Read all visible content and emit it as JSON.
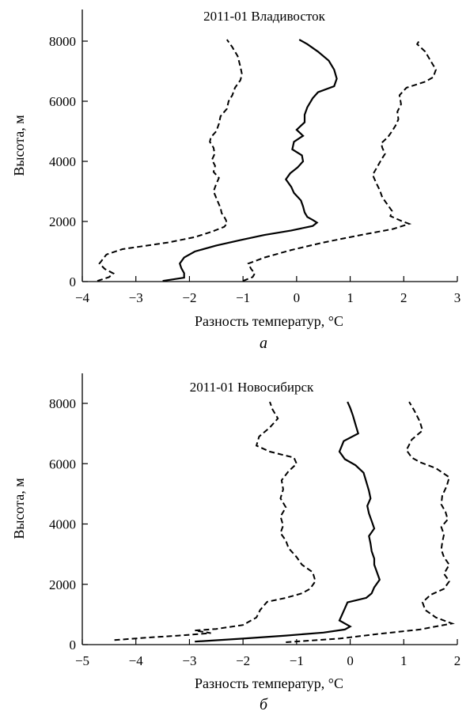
{
  "chart_data": [
    {
      "type": "line",
      "panel_label": "а",
      "title": "2011-01 Владивосток",
      "xlabel": "Разность температур, °C",
      "ylabel": "Высота, м",
      "xlim": [
        -4,
        3
      ],
      "ylim": [
        0,
        8500
      ],
      "xticks": [
        "−4",
        "−3",
        "−2",
        "−1",
        "0",
        "1",
        "2",
        "3"
      ],
      "yticks": [
        "0",
        "2000",
        "4000",
        "6000",
        "8000"
      ],
      "xtick_values": [
        -4,
        -3,
        -2,
        -1,
        0,
        1,
        2,
        3
      ],
      "ytick_values": [
        0,
        2000,
        4000,
        6000,
        8000
      ],
      "grid": false,
      "series": [
        {
          "style": "dashed",
          "points": [
            [
              -3.72,
              20
            ],
            [
              -3.5,
              150
            ],
            [
              -3.42,
              270
            ],
            [
              -3.58,
              420
            ],
            [
              -3.68,
              600
            ],
            [
              -3.55,
              900
            ],
            [
              -3.25,
              1080
            ],
            [
              -2.4,
              1300
            ],
            [
              -1.9,
              1480
            ],
            [
              -1.6,
              1650
            ],
            [
              -1.35,
              1820
            ],
            [
              -1.3,
              1930
            ],
            [
              -1.32,
              2050
            ],
            [
              -1.35,
              2150
            ],
            [
              -1.4,
              2280
            ],
            [
              -1.42,
              2450
            ],
            [
              -1.48,
              2700
            ],
            [
              -1.55,
              3000
            ],
            [
              -1.5,
              3250
            ],
            [
              -1.45,
              3450
            ],
            [
              -1.55,
              3650
            ],
            [
              -1.52,
              3850
            ],
            [
              -1.58,
              4050
            ],
            [
              -1.53,
              4250
            ],
            [
              -1.55,
              4450
            ],
            [
              -1.62,
              4650
            ],
            [
              -1.6,
              4800
            ],
            [
              -1.5,
              5000
            ],
            [
              -1.45,
              5250
            ],
            [
              -1.42,
              5500
            ],
            [
              -1.3,
              5750
            ],
            [
              -1.27,
              6000
            ],
            [
              -1.2,
              6200
            ],
            [
              -1.15,
              6450
            ],
            [
              -1.05,
              6700
            ],
            [
              -1.02,
              6900
            ],
            [
              -1.05,
              7150
            ],
            [
              -1.1,
              7500
            ],
            [
              -1.2,
              7800
            ],
            [
              -1.3,
              8050
            ]
          ]
        },
        {
          "style": "solid",
          "points": [
            [
              -2.5,
              20
            ],
            [
              -2.1,
              130
            ],
            [
              -2.1,
              280
            ],
            [
              -2.15,
              440
            ],
            [
              -2.18,
              600
            ],
            [
              -2.1,
              800
            ],
            [
              -1.9,
              1000
            ],
            [
              -1.5,
              1200
            ],
            [
              -1.05,
              1380
            ],
            [
              -0.6,
              1550
            ],
            [
              -0.1,
              1700
            ],
            [
              0.3,
              1850
            ],
            [
              0.38,
              1960
            ],
            [
              0.3,
              2050
            ],
            [
              0.2,
              2150
            ],
            [
              0.15,
              2300
            ],
            [
              0.12,
              2500
            ],
            [
              0.08,
              2700
            ],
            [
              -0.05,
              2950
            ],
            [
              -0.1,
              3150
            ],
            [
              -0.2,
              3400
            ],
            [
              -0.12,
              3600
            ],
            [
              0.02,
              3800
            ],
            [
              0.12,
              4000
            ],
            [
              0.1,
              4200
            ],
            [
              -0.08,
              4400
            ],
            [
              -0.05,
              4650
            ],
            [
              0.12,
              4850
            ],
            [
              0.0,
              5050
            ],
            [
              0.15,
              5300
            ],
            [
              0.15,
              5550
            ],
            [
              0.2,
              5800
            ],
            [
              0.3,
              6100
            ],
            [
              0.4,
              6300
            ],
            [
              0.7,
              6500
            ],
            [
              0.75,
              6750
            ],
            [
              0.7,
              7050
            ],
            [
              0.6,
              7350
            ],
            [
              0.4,
              7650
            ],
            [
              0.2,
              7900
            ],
            [
              0.05,
              8050
            ]
          ]
        },
        {
          "style": "dashed",
          "points": [
            [
              -1.0,
              20
            ],
            [
              -0.82,
              150
            ],
            [
              -0.78,
              270
            ],
            [
              -0.85,
              420
            ],
            [
              -0.9,
              600
            ],
            [
              -0.6,
              800
            ],
            [
              -0.1,
              1050
            ],
            [
              0.5,
              1300
            ],
            [
              1.2,
              1550
            ],
            [
              1.8,
              1750
            ],
            [
              2.1,
              1920
            ],
            [
              1.95,
              2020
            ],
            [
              1.75,
              2180
            ],
            [
              1.78,
              2350
            ],
            [
              1.7,
              2550
            ],
            [
              1.6,
              2800
            ],
            [
              1.55,
              3050
            ],
            [
              1.48,
              3300
            ],
            [
              1.42,
              3550
            ],
            [
              1.5,
              3800
            ],
            [
              1.58,
              4050
            ],
            [
              1.65,
              4250
            ],
            [
              1.6,
              4450
            ],
            [
              1.58,
              4600
            ],
            [
              1.7,
              4800
            ],
            [
              1.78,
              5000
            ],
            [
              1.85,
              5200
            ],
            [
              1.9,
              5400
            ],
            [
              1.88,
              5650
            ],
            [
              1.95,
              5900
            ],
            [
              1.92,
              6200
            ],
            [
              2.05,
              6450
            ],
            [
              2.4,
              6650
            ],
            [
              2.55,
              6800
            ],
            [
              2.6,
              7050
            ],
            [
              2.5,
              7350
            ],
            [
              2.4,
              7650
            ],
            [
              2.25,
              7900
            ],
            [
              2.3,
              8050
            ]
          ]
        }
      ]
    },
    {
      "type": "line",
      "panel_label": "б",
      "title": "2011-01 Новосибирск",
      "xlabel": "Разность температур, °C",
      "ylabel": "Высота, м",
      "xlim": [
        -5,
        2
      ],
      "ylim": [
        0,
        9000
      ],
      "xticks": [
        "−5",
        "−4",
        "−3",
        "−2",
        "−1",
        "0",
        "1",
        "2"
      ],
      "yticks": [
        "0",
        "2000",
        "4000",
        "6000",
        "8000"
      ],
      "xtick_values": [
        -5,
        -4,
        -3,
        -2,
        -1,
        0,
        1,
        2
      ],
      "ytick_values": [
        0,
        2000,
        4000,
        6000,
        8000
      ],
      "grid": false,
      "series": [
        {
          "style": "dashed",
          "points": [
            [
              -4.4,
              150
            ],
            [
              -3.8,
              230
            ],
            [
              -3.2,
              300
            ],
            [
              -2.6,
              380
            ],
            [
              -2.9,
              470
            ],
            [
              -2.5,
              520
            ],
            [
              -2.0,
              650
            ],
            [
              -1.75,
              900
            ],
            [
              -1.68,
              1150
            ],
            [
              -1.55,
              1420
            ],
            [
              -1.2,
              1550
            ],
            [
              -0.9,
              1700
            ],
            [
              -0.75,
              1850
            ],
            [
              -0.65,
              2100
            ],
            [
              -0.7,
              2400
            ],
            [
              -0.9,
              2650
            ],
            [
              -1.0,
              2900
            ],
            [
              -1.15,
              3200
            ],
            [
              -1.2,
              3450
            ],
            [
              -1.3,
              3700
            ],
            [
              -1.25,
              3950
            ],
            [
              -1.3,
              4250
            ],
            [
              -1.2,
              4550
            ],
            [
              -1.3,
              4850
            ],
            [
              -1.25,
              5150
            ],
            [
              -1.28,
              5450
            ],
            [
              -1.15,
              5750
            ],
            [
              -1.0,
              6000
            ],
            [
              -1.05,
              6200
            ],
            [
              -1.5,
              6400
            ],
            [
              -1.75,
              6600
            ],
            [
              -1.7,
              6900
            ],
            [
              -1.5,
              7200
            ],
            [
              -1.35,
              7500
            ],
            [
              -1.45,
              7800
            ],
            [
              -1.5,
              8050
            ]
          ]
        },
        {
          "style": "solid",
          "points": [
            [
              -2.9,
              100
            ],
            [
              -2.0,
              200
            ],
            [
              -1.2,
              300
            ],
            [
              -0.5,
              400
            ],
            [
              -0.1,
              500
            ],
            [
              0.0,
              600
            ],
            [
              -0.2,
              800
            ],
            [
              -0.15,
              1000
            ],
            [
              -0.1,
              1200
            ],
            [
              -0.05,
              1400
            ],
            [
              0.3,
              1550
            ],
            [
              0.4,
              1700
            ],
            [
              0.45,
              1900
            ],
            [
              0.55,
              2150
            ],
            [
              0.5,
              2400
            ],
            [
              0.45,
              2650
            ],
            [
              0.45,
              2850
            ],
            [
              0.4,
              3100
            ],
            [
              0.38,
              3350
            ],
            [
              0.35,
              3600
            ],
            [
              0.45,
              3850
            ],
            [
              0.4,
              4100
            ],
            [
              0.35,
              4350
            ],
            [
              0.32,
              4600
            ],
            [
              0.38,
              4850
            ],
            [
              0.35,
              5100
            ],
            [
              0.3,
              5400
            ],
            [
              0.25,
              5700
            ],
            [
              0.1,
              5950
            ],
            [
              -0.1,
              6150
            ],
            [
              -0.2,
              6400
            ],
            [
              -0.12,
              6750
            ],
            [
              0.15,
              7000
            ],
            [
              0.1,
              7300
            ],
            [
              0.05,
              7600
            ],
            [
              0.0,
              7850
            ],
            [
              -0.05,
              8050
            ]
          ]
        },
        {
          "style": "dashed",
          "points": [
            [
              -1.2,
              80
            ],
            [
              -0.2,
              200
            ],
            [
              0.5,
              350
            ],
            [
              1.3,
              500
            ],
            [
              1.9,
              700
            ],
            [
              1.6,
              900
            ],
            [
              1.4,
              1150
            ],
            [
              1.35,
              1400
            ],
            [
              1.5,
              1650
            ],
            [
              1.75,
              1850
            ],
            [
              1.85,
              2100
            ],
            [
              1.75,
              2350
            ],
            [
              1.85,
              2650
            ],
            [
              1.75,
              2900
            ],
            [
              1.7,
              3150
            ],
            [
              1.72,
              3400
            ],
            [
              1.75,
              3650
            ],
            [
              1.7,
              3900
            ],
            [
              1.82,
              4150
            ],
            [
              1.78,
              4400
            ],
            [
              1.7,
              4650
            ],
            [
              1.72,
              4950
            ],
            [
              1.8,
              5250
            ],
            [
              1.85,
              5550
            ],
            [
              1.6,
              5850
            ],
            [
              1.3,
              6050
            ],
            [
              1.15,
              6200
            ],
            [
              1.05,
              6450
            ],
            [
              1.15,
              6800
            ],
            [
              1.35,
              7100
            ],
            [
              1.3,
              7400
            ],
            [
              1.2,
              7750
            ],
            [
              1.1,
              8050
            ]
          ]
        }
      ]
    }
  ]
}
